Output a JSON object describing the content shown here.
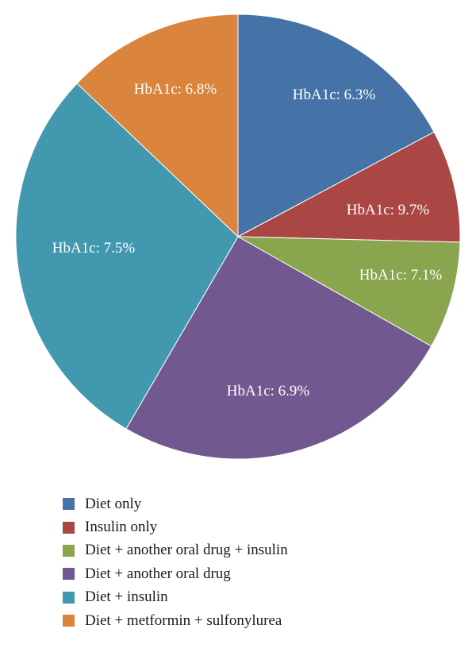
{
  "chart_data": {
    "type": "pie",
    "title": "",
    "slices": [
      {
        "name": "Diet only",
        "value": 17.2,
        "label": "HbA1c: 6.3%",
        "color": "#4573A7"
      },
      {
        "name": "Insulin only",
        "value": 8.2,
        "label": "HbA1c: 9.7%",
        "color": "#AA4644"
      },
      {
        "name": "Diet + another oral drug + insulin",
        "value": 7.8,
        "label": "HbA1c: 7.1%",
        "color": "#89A54E"
      },
      {
        "name": "Diet + another oral drug",
        "value": 25.2,
        "label": "HbA1c: 6.9%",
        "color": "#71588F"
      },
      {
        "name": "Diet + insulin",
        "value": 28.7,
        "label": "HbA1c: 7.5%",
        "color": "#4198AF"
      },
      {
        "name": "Diet + metformin + sulfonylurea",
        "value": 12.9,
        "label": "HbA1c: 6.8%",
        "color": "#DB843D"
      }
    ],
    "start_angle": "12 o'clock",
    "direction": "clockwise",
    "legend_position": "bottom-left"
  }
}
